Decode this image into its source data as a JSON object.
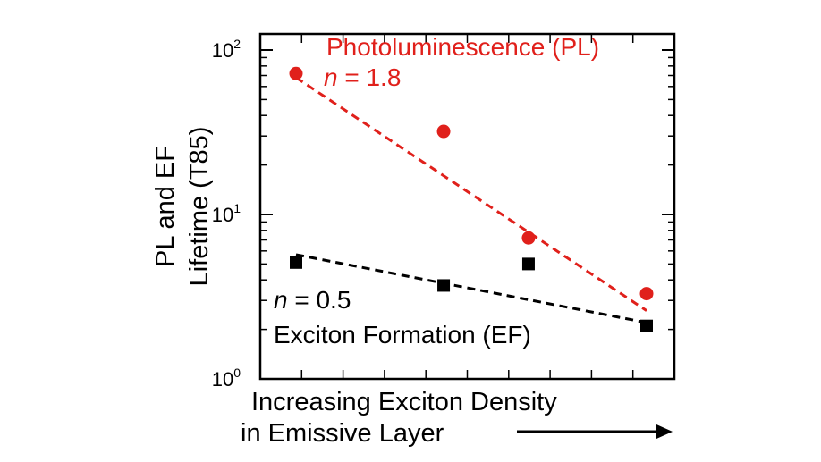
{
  "chart_data": {
    "type": "scatter",
    "title": "",
    "xlabel_line1": "Increasing Exciton Density",
    "xlabel_line2": "in Emissive Layer",
    "ylabel_line1": "PL and EF",
    "ylabel_line2": "Lifetime (T85)",
    "y_scale": "log",
    "ylim": [
      1,
      150
    ],
    "xlim": [
      0,
      10
    ],
    "y_ticks": [
      {
        "value": 1,
        "base": "10",
        "exp": "0"
      },
      {
        "value": 10,
        "base": "10",
        "exp": "1"
      },
      {
        "value": 100,
        "base": "10",
        "exp": "2"
      }
    ],
    "x_tick_count": 9,
    "x_tick_labels": false,
    "grid": false,
    "series": [
      {
        "name": "Photoluminescence (PL)",
        "slope_label_var": "n",
        "slope_label_rest": " = 1.8",
        "color": "#e0201b",
        "marker": "circle",
        "x": [
          1,
          5,
          7.3,
          10.5
        ],
        "y": [
          72,
          32,
          7.2,
          3.3
        ],
        "fit": {
          "x": [
            1,
            10.5
          ],
          "y": [
            68,
            2.6
          ]
        }
      },
      {
        "name": "Exciton Formation (EF)",
        "slope_label_var": "n",
        "slope_label_rest": " = 0.5",
        "color": "#000000",
        "marker": "square",
        "x": [
          1,
          5,
          7.3,
          10.5
        ],
        "y": [
          5.1,
          3.7,
          5.0,
          2.1
        ],
        "fit": {
          "x": [
            1,
            10.5
          ],
          "y": [
            5.7,
            2.2
          ]
        }
      }
    ]
  }
}
